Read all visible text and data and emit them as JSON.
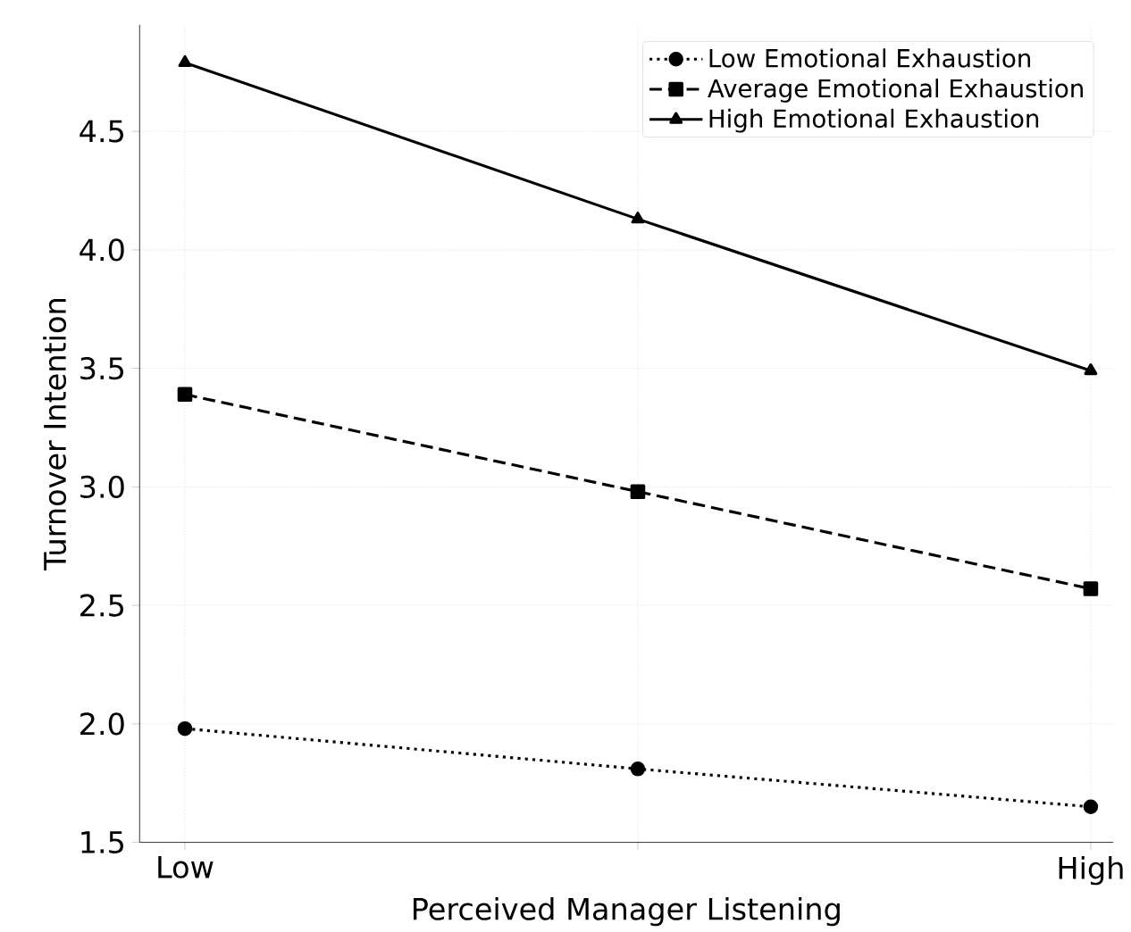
{
  "chart_data": {
    "type": "line",
    "xlabel": "Perceived Manager Listening",
    "ylabel": "Turnover Intention",
    "categories": [
      "Low",
      null,
      "High"
    ],
    "series": [
      {
        "name": "Low Emotional Exhaustion",
        "color": "#000000",
        "marker": "circle",
        "line_style": "dotted",
        "values": [
          1.98,
          1.81,
          1.65
        ]
      },
      {
        "name": "Average Emotional Exhaustion",
        "color": "#000000",
        "marker": "square",
        "line_style": "dashed",
        "values": [
          3.39,
          2.98,
          2.57
        ]
      },
      {
        "name": "High Emotional Exhaustion",
        "color": "#000000",
        "marker": "triangle",
        "line_style": "solid",
        "values": [
          4.79,
          4.13,
          3.49
        ]
      }
    ],
    "ylim": [
      1.5,
      4.95
    ],
    "yticks": [
      1.5,
      {
        "value": 2,
        "label": "2.0"
      },
      2.5,
      {
        "value": 3,
        "label": "3.0"
      },
      3.5,
      {
        "value": 4,
        "label": "4.0"
      },
      4.5
    ],
    "grid": true,
    "legend": "top right"
  }
}
